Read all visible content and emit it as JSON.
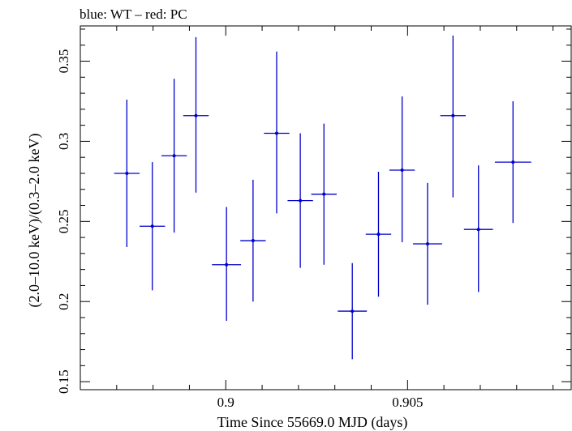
{
  "chart_data": {
    "type": "scatter",
    "title": "blue: WT – red: PC",
    "xlabel": "Time Since 55669.0 MJD (days)",
    "ylabel": "(2.0–10.0 keV)/(0.3–2.0 keV)",
    "xlim": [
      0.896,
      0.9095
    ],
    "ylim": [
      0.145,
      0.372
    ],
    "xticks": [
      {
        "value": 0.9,
        "label": "0.9"
      },
      {
        "value": 0.905,
        "label": "0.905"
      }
    ],
    "yticks": [
      {
        "value": 0.15,
        "label": "0.15"
      },
      {
        "value": 0.2,
        "label": "0.2"
      },
      {
        "value": 0.25,
        "label": "0.25"
      },
      {
        "value": 0.3,
        "label": "0.3"
      },
      {
        "value": 0.35,
        "label": "0.35"
      }
    ],
    "grid": false,
    "series": [
      {
        "color": "#0000cc",
        "points": [
          {
            "x": 0.89728,
            "y": 0.28,
            "xerr": 0.00035,
            "ylo": 0.234,
            "yhi": 0.326
          },
          {
            "x": 0.89798,
            "y": 0.247,
            "xerr": 0.00035,
            "ylo": 0.207,
            "yhi": 0.287
          },
          {
            "x": 0.89858,
            "y": 0.291,
            "xerr": 0.00035,
            "ylo": 0.243,
            "yhi": 0.339
          },
          {
            "x": 0.89918,
            "y": 0.316,
            "xerr": 0.00035,
            "ylo": 0.268,
            "yhi": 0.365
          },
          {
            "x": 0.90002,
            "y": 0.223,
            "xerr": 0.0004,
            "ylo": 0.188,
            "yhi": 0.259
          },
          {
            "x": 0.90075,
            "y": 0.238,
            "xerr": 0.00035,
            "ylo": 0.2,
            "yhi": 0.276
          },
          {
            "x": 0.9014,
            "y": 0.305,
            "xerr": 0.00035,
            "ylo": 0.255,
            "yhi": 0.356
          },
          {
            "x": 0.90205,
            "y": 0.263,
            "xerr": 0.00035,
            "ylo": 0.221,
            "yhi": 0.305
          },
          {
            "x": 0.9027,
            "y": 0.267,
            "xerr": 0.00035,
            "ylo": 0.223,
            "yhi": 0.311
          },
          {
            "x": 0.90348,
            "y": 0.194,
            "xerr": 0.0004,
            "ylo": 0.164,
            "yhi": 0.224
          },
          {
            "x": 0.9042,
            "y": 0.242,
            "xerr": 0.00035,
            "ylo": 0.203,
            "yhi": 0.281
          },
          {
            "x": 0.90485,
            "y": 0.282,
            "xerr": 0.00035,
            "ylo": 0.237,
            "yhi": 0.328
          },
          {
            "x": 0.90555,
            "y": 0.236,
            "xerr": 0.0004,
            "ylo": 0.198,
            "yhi": 0.274
          },
          {
            "x": 0.90625,
            "y": 0.316,
            "xerr": 0.00035,
            "ylo": 0.265,
            "yhi": 0.366
          },
          {
            "x": 0.90695,
            "y": 0.245,
            "xerr": 0.0004,
            "ylo": 0.206,
            "yhi": 0.285
          },
          {
            "x": 0.9079,
            "y": 0.287,
            "xerr": 0.0005,
            "ylo": 0.249,
            "yhi": 0.325
          }
        ]
      }
    ]
  }
}
